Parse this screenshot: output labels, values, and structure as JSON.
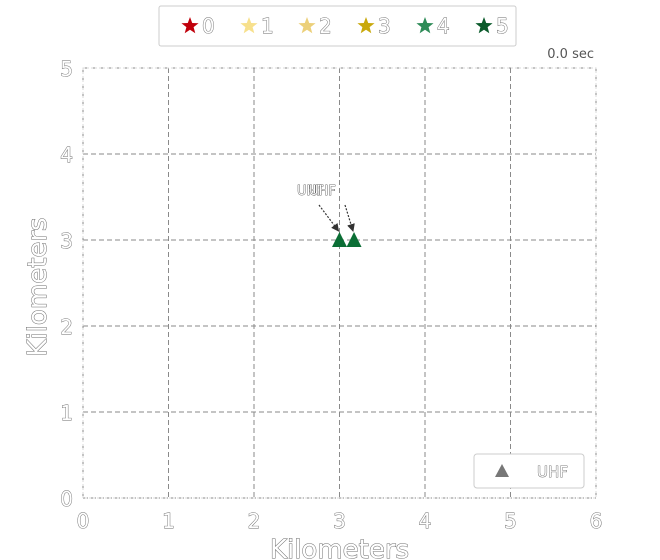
{
  "chart_data": {
    "type": "scatter",
    "title": "",
    "xlabel": "Kilometers",
    "ylabel": "Kilometers",
    "xlim": [
      0,
      6
    ],
    "ylim": [
      0,
      5
    ],
    "x_ticks": [
      "0",
      "1",
      "2",
      "3",
      "4",
      "5",
      "6"
    ],
    "y_ticks": [
      "0",
      "1",
      "2",
      "3",
      "4",
      "5"
    ],
    "grid": true,
    "time_label": "0.0 sec",
    "top_legend": {
      "placement": "top-center",
      "entries": [
        {
          "label": "0",
          "color": "#c0000b"
        },
        {
          "label": "1",
          "color": "#f7e08c"
        },
        {
          "label": "2",
          "color": "#ecd07a"
        },
        {
          "label": "3",
          "color": "#c9a90c"
        },
        {
          "label": "4",
          "color": "#2e8b57"
        },
        {
          "label": "5",
          "color": "#0a5a2a"
        }
      ]
    },
    "marker_legend": {
      "placement": "bottom-right",
      "entries": [
        {
          "label": "UHF",
          "color": "#777777",
          "marker": "triangle"
        }
      ]
    },
    "series": [
      {
        "name": "UHF",
        "marker": "triangle",
        "color": "#0b6e35",
        "points": [
          {
            "x": 3.0,
            "y": 3.0,
            "label": "UHF"
          },
          {
            "x": 3.17,
            "y": 3.0,
            "label": "UHF"
          }
        ]
      }
    ]
  }
}
